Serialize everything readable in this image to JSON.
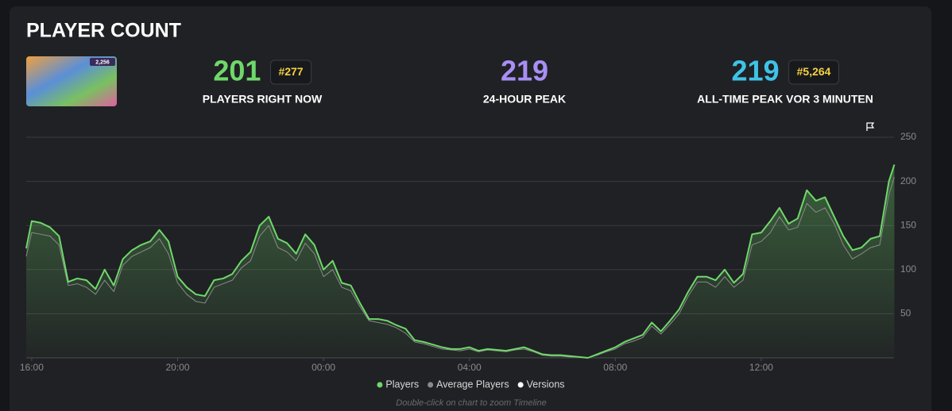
{
  "title": "PLAYER COUNT",
  "thumbnail_badge": "2,256",
  "stats": [
    {
      "value": 201,
      "rank": "#277",
      "label": "PLAYERS RIGHT NOW",
      "color": "#6fd86a"
    },
    {
      "value": 219,
      "label": "24-HOUR PEAK",
      "color": "#a98ef5"
    },
    {
      "value": 219,
      "rank": "#5,264",
      "label": "ALL-TIME PEAK VOR 3 MINUTEN",
      "color": "#3ec3e8"
    }
  ],
  "chart_data": {
    "type": "line",
    "x": [
      -0.15,
      0,
      0.25,
      0.5,
      0.75,
      1,
      1.25,
      1.5,
      1.75,
      2,
      2.25,
      2.5,
      2.75,
      3,
      3.25,
      3.5,
      3.75,
      4,
      4.25,
      4.5,
      4.75,
      5,
      5.25,
      5.5,
      5.75,
      6,
      6.25,
      6.5,
      6.75,
      7,
      7.25,
      7.5,
      7.75,
      8,
      8.25,
      8.5,
      8.75,
      9,
      9.25,
      9.5,
      9.75,
      10,
      10.25,
      10.5,
      10.75,
      11,
      11.25,
      11.5,
      11.75,
      12,
      12.25,
      12.5,
      12.75,
      13,
      13.25,
      13.5,
      13.75,
      14,
      14.25,
      14.5,
      14.75,
      15,
      15.25,
      15.5,
      15.75,
      16,
      16.25,
      16.5,
      16.75,
      17,
      17.25,
      17.5,
      17.75,
      18,
      18.25,
      18.5,
      18.75,
      19,
      19.25,
      19.5,
      19.75,
      20,
      20.25,
      20.5,
      20.75,
      21,
      21.25,
      21.5,
      21.75,
      22,
      22.25,
      22.5,
      22.75,
      23,
      23.25,
      23.5,
      23.65
    ],
    "series": [
      {
        "name": "Players",
        "color": "#6fd86a",
        "values": [
          124,
          155,
          153,
          148,
          138,
          86,
          90,
          88,
          78,
          100,
          82,
          112,
          122,
          128,
          132,
          145,
          132,
          92,
          80,
          72,
          70,
          88,
          90,
          95,
          110,
          120,
          150,
          160,
          135,
          130,
          118,
          140,
          128,
          100,
          110,
          85,
          82,
          62,
          44,
          44,
          42,
          37,
          33,
          20,
          18,
          15,
          12,
          10,
          10,
          12,
          8,
          10,
          9,
          8,
          10,
          12,
          8,
          4,
          3,
          3,
          2,
          1,
          0,
          4,
          8,
          12,
          18,
          22,
          26,
          40,
          30,
          42,
          55,
          75,
          92,
          92,
          88,
          100,
          85,
          95,
          140,
          142,
          155,
          170,
          152,
          158,
          190,
          178,
          182,
          160,
          138,
          122,
          125,
          135,
          138,
          200,
          219
        ]
      },
      {
        "name": "Average Players",
        "color": "#8a8a8a",
        "values": [
          115,
          142,
          140,
          138,
          128,
          82,
          84,
          80,
          72,
          88,
          75,
          105,
          115,
          120,
          125,
          135,
          118,
          85,
          72,
          64,
          62,
          80,
          84,
          88,
          102,
          110,
          138,
          150,
          125,
          120,
          110,
          130,
          118,
          92,
          100,
          80,
          76,
          58,
          42,
          40,
          38,
          34,
          28,
          18,
          16,
          13,
          10,
          9,
          8,
          10,
          7,
          9,
          8,
          7,
          9,
          10,
          7,
          3,
          2,
          2,
          1,
          1,
          0,
          3,
          7,
          10,
          16,
          19,
          23,
          36,
          27,
          38,
          50,
          70,
          86,
          86,
          80,
          92,
          80,
          88,
          128,
          132,
          142,
          160,
          145,
          148,
          175,
          165,
          170,
          152,
          128,
          112,
          118,
          125,
          128,
          185,
          205
        ]
      }
    ],
    "extra_legend": [
      {
        "name": "Versions",
        "color": "#ffffff"
      }
    ],
    "xlim": [
      -0.15,
      23.64
    ],
    "xticks": [
      {
        "value": 0,
        "label": "16:00"
      },
      {
        "value": 4,
        "label": "20:00"
      },
      {
        "value": 8,
        "label": "00:00"
      },
      {
        "value": 12,
        "label": "04:00"
      },
      {
        "value": 16,
        "label": "08:00"
      },
      {
        "value": 20,
        "label": "12:00"
      }
    ],
    "ylim": [
      0,
      250
    ],
    "yticks": [
      50,
      100,
      150,
      200,
      250
    ],
    "grid": true,
    "note": "Double-click on chart to zoom Timeline"
  }
}
